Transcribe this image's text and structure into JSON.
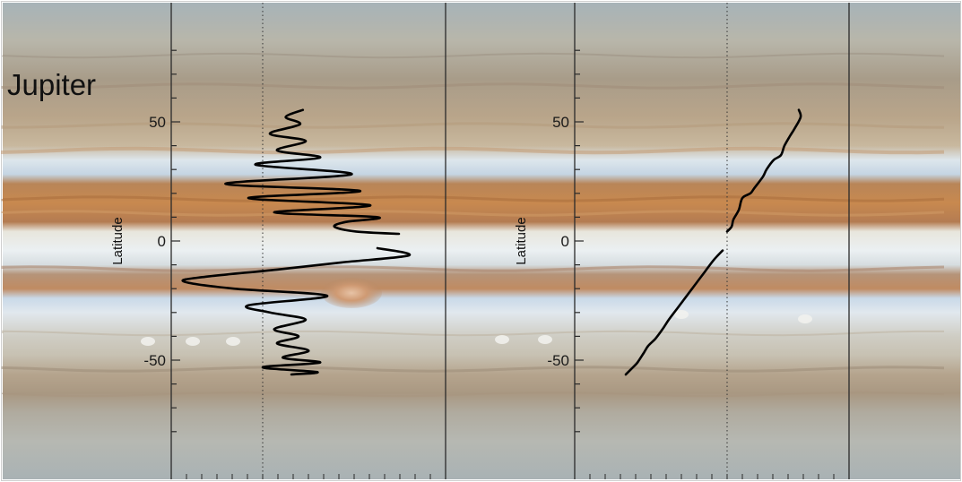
{
  "title": "Jupiter",
  "colors": {
    "line": "#000000",
    "axis": "#2a2a2a",
    "belt_brown": "#b57a4a",
    "zone_white": "#e7eef2",
    "zone_blue": "#c6d7e6",
    "background_gray": "#b9b7ad"
  },
  "chart_data": [
    {
      "type": "line",
      "title": "",
      "xlabel": "",
      "ylabel": "Latitude",
      "ylim": [
        -100,
        100
      ],
      "yticks": [
        50,
        0,
        -50
      ],
      "ytick_labels": [
        "50",
        "0",
        "-50"
      ],
      "zero_reference": "dotted vertical line",
      "grid": false,
      "series": [
        {
          "segments": [
            {
              "x": [
                0.28,
                0.16,
                0.26,
                0.05,
                0.3,
                0.1,
                0.4,
                -0.05,
                0.62,
                -0.26,
                0.68,
                -0.1,
                0.75,
                0.08,
                0.8,
                0.58,
                0.5,
                0.65,
                0.95
              ],
              "y": [
                55,
                52,
                49,
                45,
                42,
                38,
                35,
                32,
                28,
                24,
                21,
                18,
                15,
                12,
                10,
                8,
                6,
                4,
                3
              ]
            },
            {
              "x": [
                0.8,
                1.02,
                0.55,
                0.1,
                -0.4,
                -0.55,
                -0.2,
                0.45,
                -0.1,
                0.05,
                0.3,
                0.08,
                0.25,
                0.1,
                0.32,
                0.14,
                0.4,
                0.0,
                0.38,
                0.2
              ],
              "y": [
                -3,
                -6,
                -9,
                -12,
                -15,
                -17,
                -20,
                -23,
                -27,
                -30,
                -33,
                -37,
                -40,
                -43,
                -46,
                -49,
                -51,
                -53,
                -55,
                -56
              ]
            }
          ]
        }
      ]
    },
    {
      "type": "line",
      "title": "",
      "xlabel": "",
      "ylabel": "Latitude",
      "ylim": [
        -100,
        100
      ],
      "yticks": [
        50,
        0,
        -50
      ],
      "ytick_labels": [
        "50",
        "0",
        "-50"
      ],
      "zero_reference": "dotted vertical line",
      "grid": false,
      "series": [
        {
          "segments": [
            {
              "x": [
                0.8,
                0.82,
                0.75,
                0.7,
                0.64,
                0.6,
                0.52,
                0.44,
                0.4,
                0.3,
                0.26,
                0.17,
                0.13,
                0.07,
                0.05,
                0.0
              ],
              "y": [
                55,
                52,
                47,
                44,
                40,
                36,
                34,
                30,
                27,
                22,
                20,
                18,
                13,
                9,
                6,
                4
              ]
            },
            {
              "x": [
                -0.05,
                -0.15,
                -0.25,
                -0.35,
                -0.45,
                -0.55,
                -0.65,
                -0.72,
                -0.8,
                -0.88,
                -0.93,
                -1.0,
                -1.05,
                -1.13
              ],
              "y": [
                -4,
                -8,
                -13,
                -18,
                -23,
                -28,
                -33,
                -37,
                -41,
                -44,
                -47,
                -51,
                -53,
                -56
              ]
            }
          ]
        }
      ]
    }
  ]
}
